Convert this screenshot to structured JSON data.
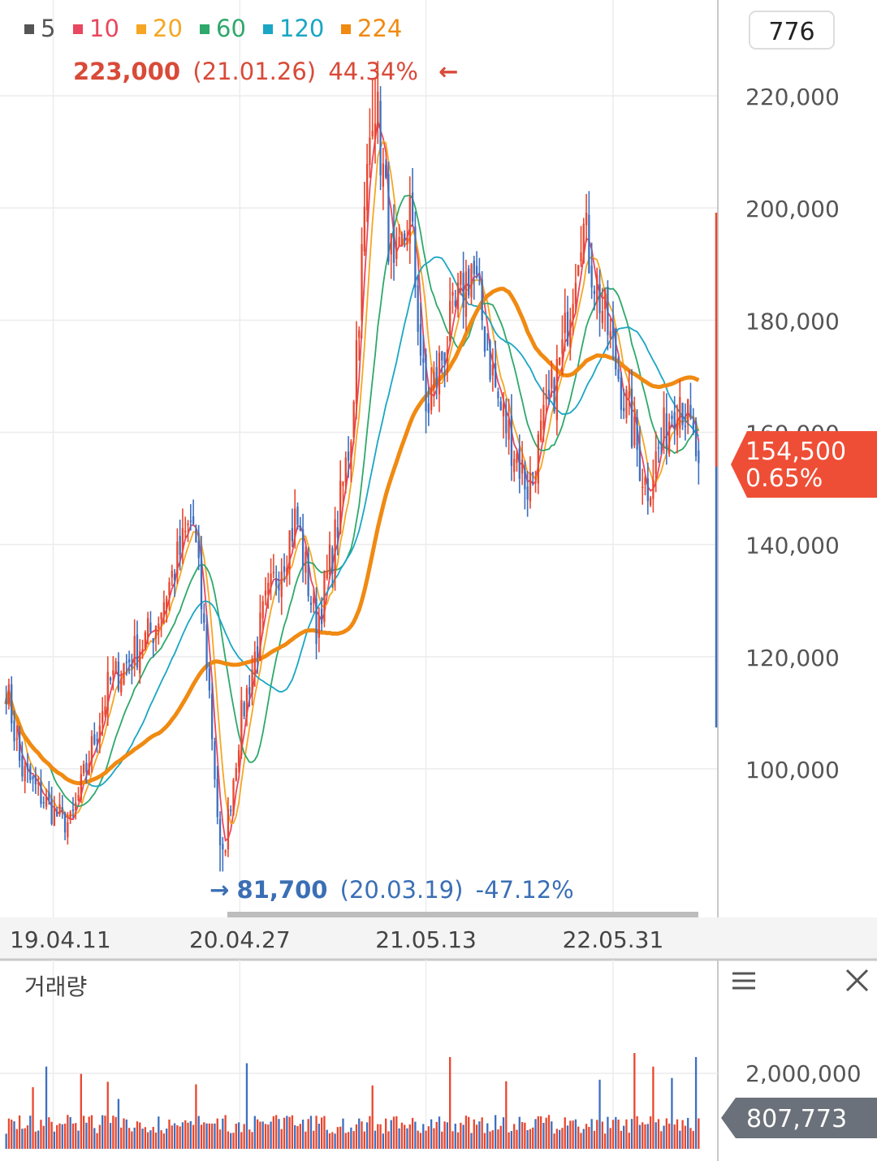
{
  "legend": [
    {
      "label": "5",
      "color": "#555555"
    },
    {
      "label": "10",
      "color": "#e8475f"
    },
    {
      "label": "20",
      "color": "#f5a623"
    },
    {
      "label": "60",
      "color": "#2ea86b"
    },
    {
      "label": "120",
      "color": "#1aa6c4"
    },
    {
      "label": "224",
      "color": "#f08a12"
    }
  ],
  "top_badge": "776",
  "high_annotation": {
    "price": "223,000",
    "date": "(21.01.26)",
    "pct": "44.34%",
    "arrow": "←"
  },
  "low_annotation": {
    "arrow": "→",
    "price": "81,700",
    "date": "(20.03.19)",
    "pct": "-47.12%"
  },
  "current_price": {
    "price": "154,500",
    "change": "0.65%"
  },
  "volume": {
    "title": "거래량",
    "tick": "2,000,000",
    "current": "807,773"
  },
  "icons": {
    "menu": "menu-icon",
    "close": "close-icon"
  },
  "colors": {
    "up": "#e8472f",
    "down": "#3d6fbf",
    "price_badge": "#ef4e36",
    "volume_badge": "#6b717a"
  },
  "chart_data": {
    "type": "candlestick",
    "y_ticks": [
      "220,000",
      "200,000",
      "180,000",
      "160,000",
      "140,000",
      "120,000",
      "100,000"
    ],
    "y_tick_values": [
      220000,
      200000,
      180000,
      160000,
      140000,
      120000,
      100000
    ],
    "x_ticks": [
      "19.04.11",
      "20.04.27",
      "21.05.13",
      "22.05.31"
    ],
    "ylim": [
      78000,
      230000
    ],
    "start_price": 115000,
    "current": 154500,
    "high": {
      "value": 223000,
      "date": "21.01.26"
    },
    "low": {
      "value": 81700,
      "date": "20.03.19"
    },
    "anchors": [
      {
        "date": "19.01.02",
        "price": 115000
      },
      {
        "date": "19.02.01",
        "price": 100000
      },
      {
        "date": "19.04.11",
        "price": 92000
      },
      {
        "date": "19.05.15",
        "price": 90000
      },
      {
        "date": "19.08.01",
        "price": 115000
      },
      {
        "date": "19.11.01",
        "price": 125000
      },
      {
        "date": "20.01.20",
        "price": 145000
      },
      {
        "date": "20.02.20",
        "price": 118000
      },
      {
        "date": "20.03.19",
        "price": 81700
      },
      {
        "date": "20.04.27",
        "price": 108000
      },
      {
        "date": "20.06.15",
        "price": 128000
      },
      {
        "date": "20.08.20",
        "price": 145000
      },
      {
        "date": "20.09.30",
        "price": 125000
      },
      {
        "date": "20.11.10",
        "price": 142000
      },
      {
        "date": "20.12.10",
        "price": 160000
      },
      {
        "date": "21.01.26",
        "price": 223000
      },
      {
        "date": "21.03.10",
        "price": 185000
      },
      {
        "date": "21.04.10",
        "price": 200000
      },
      {
        "date": "21.05.13",
        "price": 163000
      },
      {
        "date": "21.06.20",
        "price": 175000
      },
      {
        "date": "21.08.15",
        "price": 190000
      },
      {
        "date": "21.10.10",
        "price": 165000
      },
      {
        "date": "21.12.10",
        "price": 150000
      },
      {
        "date": "22.02.20",
        "price": 175000
      },
      {
        "date": "22.03.28",
        "price": 198000
      },
      {
        "date": "22.05.31",
        "price": 175000
      },
      {
        "date": "22.08.10",
        "price": 150000
      },
      {
        "date": "22.10.15",
        "price": 168000
      },
      {
        "date": "22.11.25",
        "price": 154500
      }
    ],
    "moving_averages": [
      5,
      10,
      20,
      60,
      120,
      224
    ],
    "volume_ylim": [
      0,
      2200000
    ],
    "volume_last": 807773
  }
}
